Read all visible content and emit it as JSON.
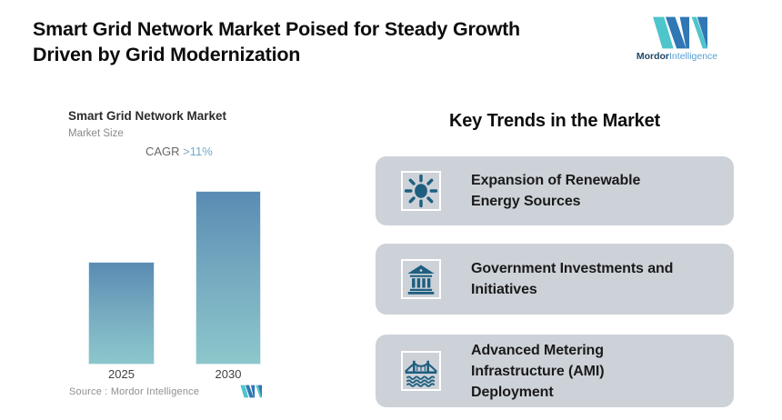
{
  "header": {
    "title": "Smart Grid Network Market Poised for Steady Growth\nDriven by Grid Modernization",
    "logo": {
      "name_bold": "Mordor",
      "name_light": "Intelligence"
    }
  },
  "chart": {
    "title": "Smart Grid Network Market",
    "subtitle": "Market Size",
    "cagr_label": "CAGR ",
    "cagr_value": ">11%",
    "source_label": "Source :  Mordor Intelligence"
  },
  "chart_data": {
    "type": "bar",
    "title": "Smart Grid Network Market",
    "subtitle": "Market Size",
    "annotation": "CAGR >11%",
    "categories": [
      "2025",
      "2030"
    ],
    "values": [
      1,
      1.69
    ],
    "value_note": "No numeric axis shown; heights are relative. 2030 bar is ~1.69x the 2025 bar, consistent with CAGR >11% over 5 years.",
    "xlabel": "",
    "ylabel": "Market Size",
    "grid": false,
    "legend": false,
    "source": "Mordor Intelligence"
  },
  "trends": {
    "heading": "Key Trends in the Market",
    "cards": [
      {
        "icon": "sun-icon",
        "label": "Expansion of Renewable\nEnergy Sources"
      },
      {
        "icon": "bank-icon",
        "label": "Government Investments and\nInitiatives"
      },
      {
        "icon": "bridge-icon",
        "label": "Advanced Metering\nInfrastructure (AMI)\nDeployment"
      }
    ]
  },
  "colors": {
    "logo_blue": "#3077b4",
    "logo_teal": "#4ec5ca",
    "logo_text_dark": "#1d4666",
    "logo_text_light": "#55a0d3",
    "bar_gradient_top": "#5a8bb3",
    "bar_gradient_bottom": "#8cc7cb",
    "cagr_blue": "#74aac9",
    "card_background": "#cdd2d8",
    "trend_icon": "#1e5f80",
    "title_text": "#0d0d0d",
    "muted_text": "#8a8a8a"
  }
}
